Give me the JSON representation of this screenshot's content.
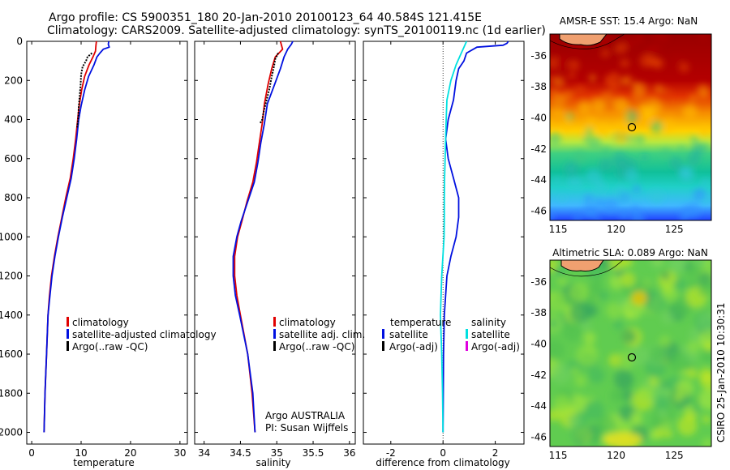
{
  "header": {
    "line1": "Argo profile: CS 5900351_180 20-Jan-2010 20100123_64 40.584S 121.415E",
    "line2": "Climatology: CARS2009. Satellite-adjusted climatology: synTS_20100119.nc (1d earlier)"
  },
  "colors": {
    "climatology": "#e00000",
    "satellite": "#0010e0",
    "argo": "#000000",
    "diff_salinity": "#00e0e0",
    "diff_salinity_argo": "#e000e0"
  },
  "chart_data": [
    {
      "type": "line",
      "xlabel": "temperature",
      "ylabel": "",
      "xlim": [
        -1,
        31.5
      ],
      "ylim": [
        2060,
        0
      ],
      "xticks": [
        0,
        10,
        20,
        30
      ],
      "yticks": [
        0,
        200,
        400,
        600,
        800,
        1000,
        1200,
        1400,
        1600,
        1800,
        2000
      ],
      "legend": [
        "climatology",
        "satellite-adjusted climatology",
        "Argo(..raw -QC)"
      ],
      "series": [
        {
          "name": "climatology",
          "color": "#e00000",
          "depth": [
            0,
            20,
            50,
            80,
            120,
            180,
            250,
            330,
            400,
            500,
            600,
            700,
            800,
            900,
            1000,
            1100,
            1200,
            1300,
            1400,
            1600,
            1800,
            2000
          ],
          "values": [
            13.1,
            13.0,
            12.9,
            12.4,
            11.6,
            10.7,
            10.1,
            9.6,
            9.3,
            8.9,
            8.4,
            7.8,
            6.9,
            6.1,
            5.3,
            4.6,
            4.0,
            3.6,
            3.3,
            3.0,
            2.7,
            2.5
          ]
        },
        {
          "name": "satellite-adjusted climatology",
          "color": "#0010e0",
          "depth": [
            0,
            15,
            30,
            40,
            60,
            80,
            120,
            180,
            250,
            330,
            400,
            500,
            600,
            700,
            800,
            900,
            1000,
            1100,
            1200,
            1300,
            1400,
            1600,
            1800,
            2000
          ],
          "values": [
            15.6,
            15.5,
            15.7,
            14.5,
            13.8,
            13.2,
            12.6,
            11.5,
            10.7,
            10.0,
            9.5,
            9.1,
            8.6,
            8.0,
            7.1,
            6.2,
            5.4,
            4.7,
            4.1,
            3.7,
            3.3,
            3.0,
            2.7,
            2.5
          ]
        },
        {
          "name": "Argo(..raw -QC)",
          "color": "#000000",
          "depth": [
            60,
            80,
            100,
            130,
            170,
            220,
            280,
            340,
            400,
            440
          ],
          "values": [
            12.2,
            11.3,
            11.0,
            10.3,
            10.0,
            9.9,
            9.7,
            9.5,
            9.4,
            9.2
          ]
        }
      ]
    },
    {
      "type": "line",
      "xlabel": "salinity",
      "xlim": [
        33.87,
        36.08
      ],
      "ylim": [
        2060,
        0
      ],
      "xticks": [
        34,
        34.5,
        35,
        35.5,
        36
      ],
      "legend": [
        "climatology",
        "satellite adj. clim.",
        "Argo(..raw -QC)"
      ],
      "annotation": [
        "Argo AUSTRALIA",
        "PI: Susan Wijffels"
      ],
      "series": [
        {
          "name": "climatology",
          "color": "#e00000",
          "depth": [
            0,
            40,
            80,
            140,
            220,
            320,
            420,
            520,
            620,
            720,
            820,
            920,
            1000,
            1100,
            1200,
            1300,
            1400,
            1600,
            1800,
            2000
          ],
          "values": [
            35.05,
            35.08,
            34.98,
            34.93,
            34.88,
            34.83,
            34.8,
            34.76,
            34.72,
            34.67,
            34.59,
            34.52,
            34.46,
            34.42,
            34.42,
            34.45,
            34.5,
            34.6,
            34.66,
            34.7
          ]
        },
        {
          "name": "satellite adj. clim.",
          "color": "#0010e0",
          "depth": [
            0,
            15,
            40,
            80,
            140,
            220,
            320,
            420,
            520,
            620,
            720,
            820,
            920,
            1000,
            1100,
            1200,
            1300,
            1400,
            1600,
            1800,
            2000
          ],
          "values": [
            35.22,
            35.2,
            35.15,
            35.1,
            35.05,
            34.97,
            34.87,
            34.83,
            34.78,
            34.74,
            34.69,
            34.6,
            34.51,
            34.45,
            34.4,
            34.4,
            34.43,
            34.49,
            34.6,
            34.67,
            34.7
          ]
        },
        {
          "name": "Argo(..raw -QC)",
          "color": "#000000",
          "depth": [
            60,
            90,
            130,
            180,
            240,
            300,
            360,
            400,
            420
          ],
          "values": [
            35.02,
            34.98,
            34.96,
            34.93,
            34.9,
            34.86,
            34.82,
            34.8,
            34.77
          ]
        }
      ]
    },
    {
      "type": "line",
      "xlabel": "difference from climatology",
      "xlim": [
        -3.05,
        3.1
      ],
      "ylim": [
        2060,
        0
      ],
      "xticks": [
        -2,
        0,
        2
      ],
      "legend": {
        "temperature_header": "temperature",
        "salinity_header": "salinity",
        "entries": [
          "satellite",
          "Argo(-adj)",
          "satellite",
          "Argo(-adj)"
        ]
      },
      "series": [
        {
          "name": "temperature satellite",
          "color": "#0010e0",
          "depth": [
            0,
            10,
            20,
            30,
            60,
            100,
            140,
            200,
            300,
            400,
            500,
            600,
            700,
            800,
            900,
            1000,
            1100,
            1200,
            1400,
            1600,
            1800,
            2000
          ],
          "values": [
            2.5,
            2.45,
            2.3,
            1.3,
            0.9,
            0.8,
            0.6,
            0.5,
            0.4,
            0.2,
            0.1,
            0.2,
            0.4,
            0.6,
            0.6,
            0.5,
            0.3,
            0.15,
            0.05,
            0.02,
            0.01,
            0.0
          ]
        },
        {
          "name": "salinity satellite",
          "color": "#00e0e0",
          "depth": [
            0,
            30,
            60,
            120,
            200,
            300,
            400,
            500,
            600,
            700,
            800,
            900,
            1000,
            1200,
            1400,
            1600,
            1800,
            2000
          ],
          "values": [
            0.9,
            0.8,
            0.7,
            0.5,
            0.3,
            0.15,
            0.12,
            0.1,
            0.08,
            0.06,
            0.05,
            0.05,
            0.04,
            -0.05,
            -0.1,
            -0.05,
            -0.02,
            0.0
          ]
        }
      ]
    },
    {
      "type": "heatmap",
      "title": "AMSR-E SST: 15.4 Argo: NaN",
      "xticks": [
        115,
        120,
        125
      ],
      "yticks": [
        -36,
        -38,
        -40,
        -42,
        -44,
        -46
      ],
      "xlim": [
        114.3,
        128.2
      ],
      "ylim": [
        -46.6,
        -34.6
      ],
      "marker": {
        "lon": 121.415,
        "lat": -40.584
      }
    },
    {
      "type": "heatmap",
      "title": "Altimetric SLA: 0.089 Argo: NaN",
      "xticks": [
        115,
        120,
        125
      ],
      "yticks": [
        -36,
        -38,
        -40,
        -42,
        -44,
        -46
      ],
      "xlim": [
        114.3,
        128.2
      ],
      "ylim": [
        -46.6,
        -34.6
      ],
      "marker": {
        "lon": 121.415,
        "lat": -40.584
      }
    }
  ],
  "side_caption": "CSIRO 25-Jan-2010 10:30:31"
}
